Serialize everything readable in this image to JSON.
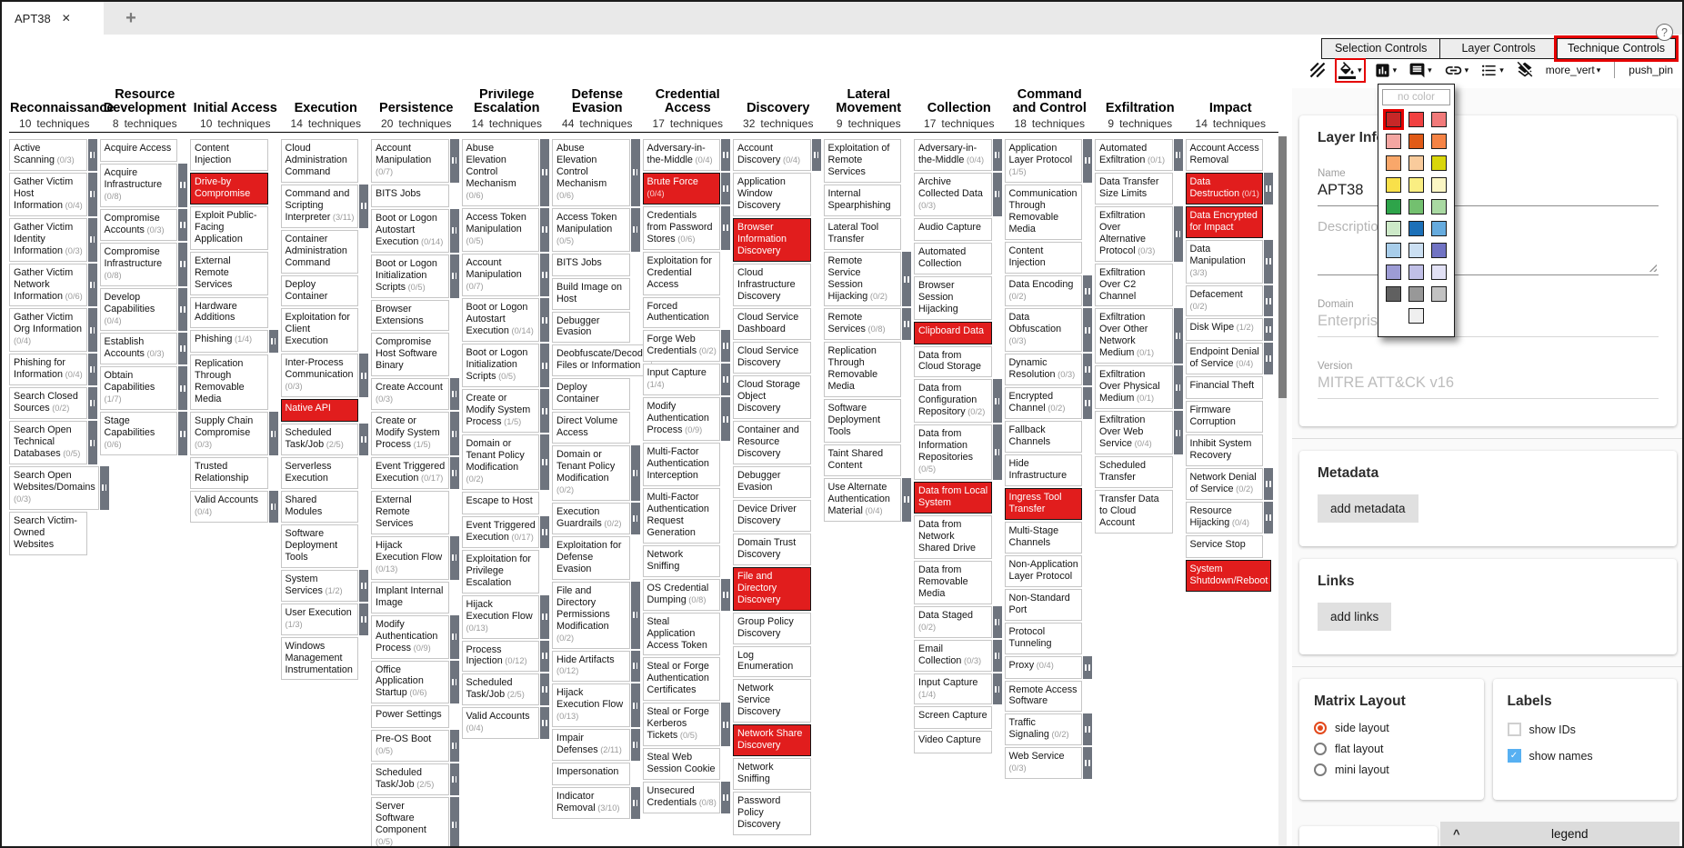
{
  "tabs": {
    "active_label": "APT38",
    "close_glyph": "✕",
    "new_tab_glyph": "+",
    "help_glyph": "?"
  },
  "controls": {
    "buttons": [
      "Selection Controls",
      "Layer Controls",
      "Technique Controls"
    ],
    "active_index": 2
  },
  "toolbar": {
    "more_label": "more_vert",
    "pin_label": "push_pin",
    "caret_glyph": "▾"
  },
  "color_picker": {
    "no_color_label": "no color",
    "selected": {
      "row": 0,
      "col": 0
    },
    "rows": [
      [
        "#c72727",
        "#f14141",
        "#f17a7a"
      ],
      [
        "#f4a6a2",
        "#e05a17",
        "#f58345"
      ],
      [
        "#f9a76a",
        "#f9cb9c",
        "#d9d60b"
      ],
      [
        "#f9e04a",
        "#faee82",
        "#fbf6c4"
      ],
      [
        "#2ea44a",
        "#73c06f",
        "#a9d9a2"
      ],
      [
        "#cde9c8",
        "#1c70b8",
        "#66abde"
      ],
      [
        "#a8cdea",
        "#cbdff2",
        "#7173c3"
      ],
      [
        "#9d9cd5",
        "#c0bfe6",
        "#e2e1f5"
      ],
      [
        "#606060",
        "#989898",
        "#c2c2c2"
      ],
      [
        "#efefef"
      ]
    ]
  },
  "layer_info": {
    "title": "Layer Information",
    "name_label": "Name",
    "name_value": "APT38",
    "description_label": "Description",
    "domain_label": "Domain",
    "domain_value": "Enterprise ATT&CK",
    "version_label": "Version",
    "version_value": "MITRE ATT&CK v16"
  },
  "metadata": {
    "title": "Metadata",
    "button_label": "add metadata"
  },
  "links": {
    "title": "Links",
    "button_label": "add links"
  },
  "matrix_layout": {
    "title": "Matrix Layout",
    "options": [
      "side layout",
      "flat layout",
      "mini layout"
    ],
    "selected": 0
  },
  "labels_card": {
    "title": "Labels",
    "options": [
      {
        "label": "show IDs",
        "checked": false
      },
      {
        "label": "show names",
        "checked": true
      }
    ]
  },
  "legend": {
    "label": "legend",
    "collapse_glyph": "^"
  },
  "colors": {
    "technique_highlight": "#e11d1d",
    "annotation_red": "#e50000",
    "checkbox_blue": "#57b0f2",
    "radio_orange": "#e2491c",
    "sidebar_gray": "#6e747e"
  },
  "matrix": {
    "techniques_suffix": "techniques",
    "tactics": [
      {
        "name": "Reconnaissance",
        "count": "10",
        "techniques": [
          {
            "t": "Active Scanning",
            "c": "(0/3)"
          },
          {
            "t": "Gather Victim Host Information",
            "c": "(0/4)"
          },
          {
            "t": "Gather Victim Identity Information",
            "c": "(0/3)"
          },
          {
            "t": "Gather Victim Network Information",
            "c": "(0/6)"
          },
          {
            "t": "Gather Victim Org Information",
            "c": "(0/4)"
          },
          {
            "t": "Phishing for Information",
            "c": "(0/4)"
          },
          {
            "t": "Search Closed Sources",
            "c": "(0/2)"
          },
          {
            "t": "Search Open Technical Databases",
            "c": "(0/5)"
          },
          {
            "t": "Search Open Websites/Domains",
            "c": "(0/3)"
          },
          {
            "t": "Search Victim-Owned Websites"
          }
        ]
      },
      {
        "name": "Resource Development",
        "count": "8",
        "techniques": [
          {
            "t": "Acquire Access"
          },
          {
            "t": "Acquire Infrastructure",
            "c": "(0/8)"
          },
          {
            "t": "Compromise Accounts",
            "c": "(0/3)"
          },
          {
            "t": "Compromise Infrastructure",
            "c": "(0/8)"
          },
          {
            "t": "Develop Capabilities",
            "c": "(0/4)"
          },
          {
            "t": "Establish Accounts",
            "c": "(0/3)"
          },
          {
            "t": "Obtain Capabilities",
            "c": "(1/7)"
          },
          {
            "t": "Stage Capabilities",
            "c": "(0/6)"
          }
        ]
      },
      {
        "name": "Initial Access",
        "count": "10",
        "techniques": [
          {
            "t": "Content Injection"
          },
          {
            "t": "Drive-by Compromise",
            "hl": true
          },
          {
            "t": "Exploit Public-Facing Application"
          },
          {
            "t": "External Remote Services"
          },
          {
            "t": "Hardware Additions"
          },
          {
            "t": "Phishing",
            "c": "(1/4)"
          },
          {
            "t": "Replication Through Removable Media"
          },
          {
            "t": "Supply Chain Compromise",
            "c": "(0/3)"
          },
          {
            "t": "Trusted Relationship"
          },
          {
            "t": "Valid Accounts",
            "c": "(0/4)"
          }
        ]
      },
      {
        "name": "Execution",
        "count": "14",
        "techniques": [
          {
            "t": "Cloud Administration Command"
          },
          {
            "t": "Command and Scripting Interpreter",
            "c": "(3/11)"
          },
          {
            "t": "Container Administration Command"
          },
          {
            "t": "Deploy Container"
          },
          {
            "t": "Exploitation for Client Execution"
          },
          {
            "t": "Inter-Process Communication",
            "c": "(0/3)"
          },
          {
            "t": "Native API",
            "hl": true
          },
          {
            "t": "Scheduled Task/Job",
            "c": "(2/5)"
          },
          {
            "t": "Serverless Execution"
          },
          {
            "t": "Shared Modules"
          },
          {
            "t": "Software Deployment Tools"
          },
          {
            "t": "System Services",
            "c": "(1/2)"
          },
          {
            "t": "User Execution",
            "c": "(1/3)"
          },
          {
            "t": "Windows Management Instrumentation"
          }
        ]
      },
      {
        "name": "Persistence",
        "count": "20",
        "techniques": [
          {
            "t": "Account Manipulation",
            "c": "(0/7)"
          },
          {
            "t": "BITS Jobs"
          },
          {
            "t": "Boot or Logon Autostart Execution",
            "c": "(0/14)"
          },
          {
            "t": "Boot or Logon Initialization Scripts",
            "c": "(0/5)"
          },
          {
            "t": "Browser Extensions"
          },
          {
            "t": "Compromise Host Software Binary"
          },
          {
            "t": "Create Account",
            "c": "(0/3)"
          },
          {
            "t": "Create or Modify System Process",
            "c": "(1/5)"
          },
          {
            "t": "Event Triggered Execution",
            "c": "(0/17)"
          },
          {
            "t": "External Remote Services"
          },
          {
            "t": "Hijack Execution Flow",
            "c": "(0/13)"
          },
          {
            "t": "Implant Internal Image"
          },
          {
            "t": "Modify Authentication Process",
            "c": "(0/9)"
          },
          {
            "t": "Office Application Startup",
            "c": "(0/6)"
          },
          {
            "t": "Power Settings"
          },
          {
            "t": "Pre-OS Boot",
            "c": "(0/5)"
          },
          {
            "t": "Scheduled Task/Job",
            "c": "(2/5)"
          },
          {
            "t": "Server Software Component",
            "c": "(0/5)"
          }
        ]
      },
      {
        "name": "Privilege Escalation",
        "count": "14",
        "techniques": [
          {
            "t": "Abuse Elevation Control Mechanism",
            "c": "(0/6)"
          },
          {
            "t": "Access Token Manipulation",
            "c": "(0/5)"
          },
          {
            "t": "Account Manipulation",
            "c": "(0/7)"
          },
          {
            "t": "Boot or Logon Autostart Execution",
            "c": "(0/14)"
          },
          {
            "t": "Boot or Logon Initialization Scripts",
            "c": "(0/5)"
          },
          {
            "t": "Create or Modify System Process",
            "c": "(1/5)"
          },
          {
            "t": "Domain or Tenant Policy Modification",
            "c": "(0/2)"
          },
          {
            "t": "Escape to Host"
          },
          {
            "t": "Event Triggered Execution",
            "c": "(0/17)"
          },
          {
            "t": "Exploitation for Privilege Escalation"
          },
          {
            "t": "Hijack Execution Flow",
            "c": "(0/13)"
          },
          {
            "t": "Process Injection",
            "c": "(0/12)"
          },
          {
            "t": "Scheduled Task/Job",
            "c": "(2/5)"
          },
          {
            "t": "Valid Accounts",
            "c": "(0/4)"
          }
        ]
      },
      {
        "name": "Defense Evasion",
        "count": "44",
        "techniques": [
          {
            "t": "Abuse Elevation Control Mechanism",
            "c": "(0/6)"
          },
          {
            "t": "Access Token Manipulation",
            "c": "(0/5)"
          },
          {
            "t": "BITS Jobs"
          },
          {
            "t": "Build Image on Host"
          },
          {
            "t": "Debugger Evasion"
          },
          {
            "t": "Deobfuscate/Decode Files or Information"
          },
          {
            "t": "Deploy Container"
          },
          {
            "t": "Direct Volume Access"
          },
          {
            "t": "Domain or Tenant Policy Modification",
            "c": "(0/2)"
          },
          {
            "t": "Execution Guardrails",
            "c": "(0/2)"
          },
          {
            "t": "Exploitation for Defense Evasion"
          },
          {
            "t": "File and Directory Permissions Modification",
            "c": "(0/2)"
          },
          {
            "t": "Hide Artifacts",
            "c": "(0/12)"
          },
          {
            "t": "Hijack Execution Flow",
            "c": "(0/13)"
          },
          {
            "t": "Impair Defenses",
            "c": "(2/11)"
          },
          {
            "t": "Impersonation"
          },
          {
            "t": "Indicator Removal",
            "c": "(3/10)"
          }
        ]
      },
      {
        "name": "Credential Access",
        "count": "17",
        "techniques": [
          {
            "t": "Adversary-in-the-Middle",
            "c": "(0/4)"
          },
          {
            "t": "Brute Force",
            "c": "(0/4)",
            "hl": true
          },
          {
            "t": "Credentials from Password Stores",
            "c": "(0/6)"
          },
          {
            "t": "Exploitation for Credential Access"
          },
          {
            "t": "Forced Authentication"
          },
          {
            "t": "Forge Web Credentials",
            "c": "(0/2)"
          },
          {
            "t": "Input Capture",
            "c": "(1/4)"
          },
          {
            "t": "Modify Authentication Process",
            "c": "(0/9)"
          },
          {
            "t": "Multi-Factor Authentication Interception"
          },
          {
            "t": "Multi-Factor Authentication Request Generation"
          },
          {
            "t": "Network Sniffing"
          },
          {
            "t": "OS Credential Dumping",
            "c": "(0/8)"
          },
          {
            "t": "Steal Application Access Token"
          },
          {
            "t": "Steal or Forge Authentication Certificates"
          },
          {
            "t": "Steal or Forge Kerberos Tickets",
            "c": "(0/5)"
          },
          {
            "t": "Steal Web Session Cookie"
          },
          {
            "t": "Unsecured Credentials",
            "c": "(0/8)"
          }
        ]
      },
      {
        "name": "Discovery",
        "count": "32",
        "techniques": [
          {
            "t": "Account Discovery",
            "c": "(0/4)"
          },
          {
            "t": "Application Window Discovery"
          },
          {
            "t": "Browser Information Discovery",
            "hl": true
          },
          {
            "t": "Cloud Infrastructure Discovery"
          },
          {
            "t": "Cloud Service Dashboard"
          },
          {
            "t": "Cloud Service Discovery"
          },
          {
            "t": "Cloud Storage Object Discovery"
          },
          {
            "t": "Container and Resource Discovery"
          },
          {
            "t": "Debugger Evasion"
          },
          {
            "t": "Device Driver Discovery"
          },
          {
            "t": "Domain Trust Discovery"
          },
          {
            "t": "File and Directory Discovery",
            "hl": true
          },
          {
            "t": "Group Policy Discovery"
          },
          {
            "t": "Log Enumeration"
          },
          {
            "t": "Network Service Discovery"
          },
          {
            "t": "Network Share Discovery",
            "hl": true
          },
          {
            "t": "Network Sniffing"
          },
          {
            "t": "Password Policy Discovery"
          }
        ]
      },
      {
        "name": "Lateral Movement",
        "count": "9",
        "techniques": [
          {
            "t": "Exploitation of Remote Services"
          },
          {
            "t": "Internal Spearphishing"
          },
          {
            "t": "Lateral Tool Transfer"
          },
          {
            "t": "Remote Service Session Hijacking",
            "c": "(0/2)"
          },
          {
            "t": "Remote Services",
            "c": "(0/8)"
          },
          {
            "t": "Replication Through Removable Media"
          },
          {
            "t": "Software Deployment Tools"
          },
          {
            "t": "Taint Shared Content"
          },
          {
            "t": "Use Alternate Authentication Material",
            "c": "(0/4)"
          }
        ]
      },
      {
        "name": "Collection",
        "count": "17",
        "techniques": [
          {
            "t": "Adversary-in-the-Middle",
            "c": "(0/4)"
          },
          {
            "t": "Archive Collected Data",
            "c": "(0/3)"
          },
          {
            "t": "Audio Capture"
          },
          {
            "t": "Automated Collection"
          },
          {
            "t": "Browser Session Hijacking"
          },
          {
            "t": "Clipboard Data",
            "hl": true
          },
          {
            "t": "Data from Cloud Storage"
          },
          {
            "t": "Data from Configuration Repository",
            "c": "(0/2)"
          },
          {
            "t": "Data from Information Repositories",
            "c": "(0/5)"
          },
          {
            "t": "Data from Local System",
            "hl": true
          },
          {
            "t": "Data from Network Shared Drive"
          },
          {
            "t": "Data from Removable Media"
          },
          {
            "t": "Data Staged",
            "c": "(0/2)"
          },
          {
            "t": "Email Collection",
            "c": "(0/3)"
          },
          {
            "t": "Input Capture",
            "c": "(1/4)"
          },
          {
            "t": "Screen Capture"
          },
          {
            "t": "Video Capture"
          }
        ]
      },
      {
        "name": "Command and Control",
        "count": "18",
        "techniques": [
          {
            "t": "Application Layer Protocol",
            "c": "(1/5)"
          },
          {
            "t": "Communication Through Removable Media"
          },
          {
            "t": "Content Injection"
          },
          {
            "t": "Data Encoding",
            "c": "(0/2)"
          },
          {
            "t": "Data Obfuscation",
            "c": "(0/3)"
          },
          {
            "t": "Dynamic Resolution",
            "c": "(0/3)"
          },
          {
            "t": "Encrypted Channel",
            "c": "(0/2)"
          },
          {
            "t": "Fallback Channels"
          },
          {
            "t": "Hide Infrastructure"
          },
          {
            "t": "Ingress Tool Transfer",
            "hl": true
          },
          {
            "t": "Multi-Stage Channels"
          },
          {
            "t": "Non-Application Layer Protocol"
          },
          {
            "t": "Non-Standard Port"
          },
          {
            "t": "Protocol Tunneling"
          },
          {
            "t": "Proxy",
            "c": "(0/4)"
          },
          {
            "t": "Remote Access Software"
          },
          {
            "t": "Traffic Signaling",
            "c": "(0/2)"
          },
          {
            "t": "Web Service",
            "c": "(0/3)"
          }
        ]
      },
      {
        "name": "Exfiltration",
        "count": "9",
        "techniques": [
          {
            "t": "Automated Exfiltration",
            "c": "(0/1)"
          },
          {
            "t": "Data Transfer Size Limits"
          },
          {
            "t": "Exfiltration Over Alternative Protocol",
            "c": "(0/3)"
          },
          {
            "t": "Exfiltration Over C2 Channel"
          },
          {
            "t": "Exfiltration Over Other Network Medium",
            "c": "(0/1)"
          },
          {
            "t": "Exfiltration Over Physical Medium",
            "c": "(0/1)"
          },
          {
            "t": "Exfiltration Over Web Service",
            "c": "(0/4)"
          },
          {
            "t": "Scheduled Transfer"
          },
          {
            "t": "Transfer Data to Cloud Account"
          }
        ]
      },
      {
        "name": "Impact",
        "count": "14",
        "techniques": [
          {
            "t": "Account Access Removal"
          },
          {
            "t": "Data Destruction",
            "c": "(0/1)",
            "hl": true
          },
          {
            "t": "Data Encrypted for Impact",
            "hl": true
          },
          {
            "t": "Data Manipulation",
            "c": "(3/3)"
          },
          {
            "t": "Defacement",
            "c": "(0/2)"
          },
          {
            "t": "Disk Wipe",
            "c": "(1/2)"
          },
          {
            "t": "Endpoint Denial of Service",
            "c": "(0/4)"
          },
          {
            "t": "Financial Theft"
          },
          {
            "t": "Firmware Corruption"
          },
          {
            "t": "Inhibit System Recovery"
          },
          {
            "t": "Network Denial of Service",
            "c": "(0/2)"
          },
          {
            "t": "Resource Hijacking",
            "c": "(0/4)"
          },
          {
            "t": "Service Stop"
          },
          {
            "t": "System Shutdown/Reboot",
            "hl": true
          }
        ]
      }
    ]
  }
}
